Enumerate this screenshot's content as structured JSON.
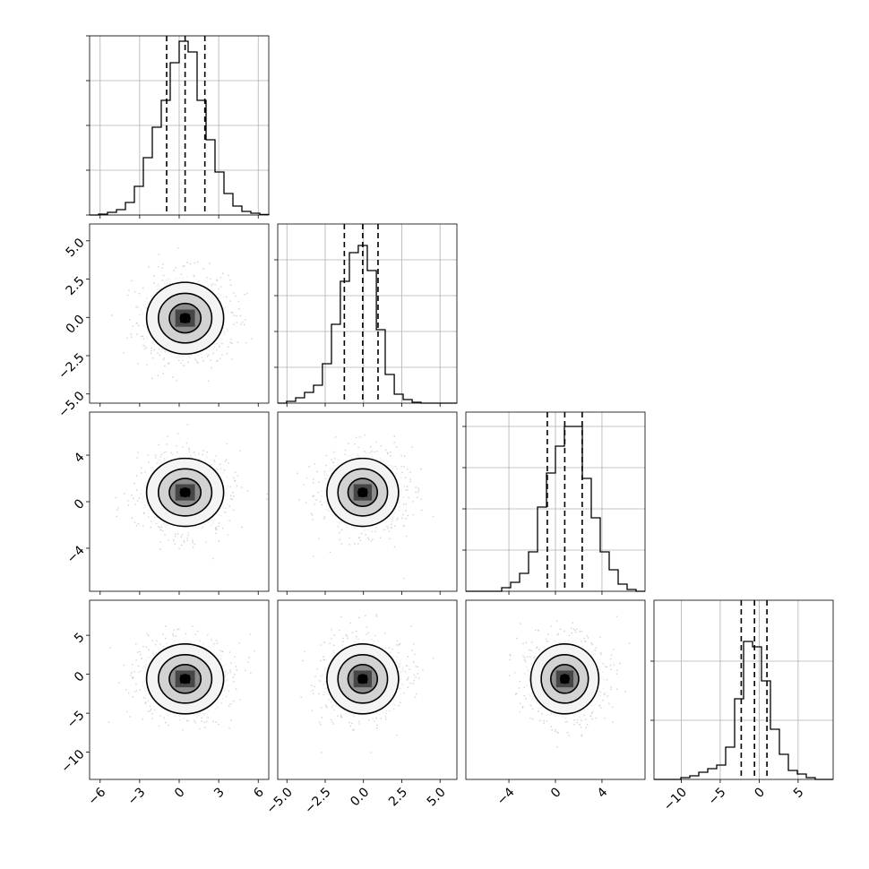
{
  "figure": {
    "background_color": "#ffffff",
    "frame_color": "#000000",
    "grid_color": "#b0b0b0"
  },
  "chart_data": {
    "type": "scatter",
    "variant": "corner-plot",
    "num_params": 4,
    "params": [
      {
        "index": 0,
        "range": [
          -6.8,
          6.8
        ],
        "ticks": [
          -6,
          -3,
          0,
          3,
          6
        ],
        "tick_labels": [
          "−6",
          "−3",
          "0",
          "3",
          "6"
        ],
        "quantiles": [
          -0.95,
          0.45,
          1.95
        ]
      },
      {
        "index": 1,
        "range": [
          -5.6,
          6.1
        ],
        "ticks": [
          -5,
          -2.5,
          0,
          2.5,
          5
        ],
        "tick_labels": [
          "−5.0",
          "−2.5",
          "0.0",
          "2.5",
          "5.0"
        ],
        "quantiles": [
          -1.25,
          -0.05,
          0.95
        ]
      },
      {
        "index": 2,
        "range": [
          -7.7,
          7.7
        ],
        "ticks": [
          -4,
          0,
          4
        ],
        "tick_labels": [
          "−4",
          "0",
          "4"
        ],
        "quantiles": [
          -0.7,
          0.8,
          2.3
        ]
      },
      {
        "index": 3,
        "range": [
          -13.5,
          9.5
        ],
        "ticks": [
          -10,
          -5,
          0,
          5
        ],
        "tick_labels": [
          "−10",
          "−5",
          "0",
          "5"
        ],
        "quantiles": [
          -2.3,
          -0.6,
          1.0
        ]
      }
    ],
    "histograms": [
      {
        "param": 0,
        "ylim": [
          0,
          1.0
        ],
        "grid_values": [
          0.0,
          0.25,
          0.5,
          0.75,
          1.0
        ],
        "edges": [
          -6.8,
          -6.12,
          -5.44,
          -4.76,
          -4.08,
          -3.4,
          -2.72,
          -2.04,
          -1.36,
          -0.68,
          0.0,
          0.68,
          1.36,
          2.04,
          2.72,
          3.4,
          4.08,
          4.76,
          5.44,
          6.12,
          6.8
        ],
        "heights": [
          0.0,
          0.005,
          0.015,
          0.03,
          0.07,
          0.16,
          0.32,
          0.49,
          0.64,
          0.85,
          0.97,
          0.91,
          0.64,
          0.42,
          0.24,
          0.12,
          0.05,
          0.02,
          0.01,
          0.003
        ]
      },
      {
        "param": 1,
        "ylim": [
          0,
          1.0
        ],
        "grid_values": [
          0.2,
          0.4,
          0.6,
          0.8
        ],
        "edges": [
          -5.6,
          -5.02,
          -4.43,
          -3.85,
          -3.26,
          -2.68,
          -2.09,
          -1.51,
          -0.92,
          -0.34,
          0.25,
          0.84,
          1.42,
          2.01,
          2.59,
          3.18,
          3.76,
          4.35,
          4.93,
          5.52,
          6.1
        ],
        "heights": [
          0.0,
          0.01,
          0.03,
          0.06,
          0.1,
          0.22,
          0.44,
          0.68,
          0.84,
          0.88,
          0.74,
          0.41,
          0.16,
          0.05,
          0.02,
          0.005,
          0.0,
          0.0,
          0.0,
          0.0
        ]
      },
      {
        "param": 2,
        "ylim": [
          0,
          1.0
        ],
        "grid_values": [
          0.23,
          0.46,
          0.69,
          0.92
        ],
        "edges": [
          -7.7,
          -6.93,
          -6.16,
          -5.39,
          -4.62,
          -3.85,
          -3.08,
          -2.31,
          -1.54,
          -0.77,
          0.0,
          0.77,
          1.54,
          2.31,
          3.08,
          3.85,
          4.62,
          5.39,
          6.16,
          6.93,
          7.7
        ],
        "heights": [
          0.0,
          0.0,
          0.0,
          0.0,
          0.02,
          0.05,
          0.1,
          0.22,
          0.47,
          0.66,
          0.81,
          0.92,
          0.92,
          0.63,
          0.41,
          0.22,
          0.12,
          0.04,
          0.01,
          0.0
        ]
      },
      {
        "param": 3,
        "ylim": [
          0,
          1.0
        ],
        "grid_values": [
          0.33,
          0.66
        ],
        "edges": [
          -13.5,
          -12.35,
          -11.2,
          -10.05,
          -8.9,
          -7.75,
          -6.6,
          -5.45,
          -4.3,
          -3.15,
          -2.0,
          -0.85,
          0.3,
          1.45,
          2.6,
          3.75,
          4.9,
          6.05,
          7.2,
          8.35,
          9.5
        ],
        "heights": [
          0.0,
          0.0,
          0.0,
          0.01,
          0.02,
          0.04,
          0.06,
          0.08,
          0.18,
          0.45,
          0.77,
          0.74,
          0.55,
          0.28,
          0.14,
          0.05,
          0.03,
          0.01,
          0.0,
          0.0
        ]
      }
    ],
    "pairs": [
      {
        "x_param": 0,
        "y_param": 1,
        "center": [
          0.45,
          -0.05
        ],
        "sigma": [
          1.5,
          1.2
        ],
        "levels_in_sigma": [
          0.8,
          1.35,
          1.95
        ]
      },
      {
        "x_param": 0,
        "y_param": 2,
        "center": [
          0.45,
          0.8
        ],
        "sigma": [
          1.5,
          1.5
        ],
        "levels_in_sigma": [
          0.8,
          1.35,
          1.95
        ]
      },
      {
        "x_param": 1,
        "y_param": 2,
        "center": [
          -0.05,
          0.8
        ],
        "sigma": [
          1.2,
          1.5
        ],
        "levels_in_sigma": [
          0.8,
          1.35,
          1.95
        ]
      },
      {
        "x_param": 0,
        "y_param": 3,
        "center": [
          0.45,
          -0.6
        ],
        "sigma": [
          1.5,
          2.3
        ],
        "levels_in_sigma": [
          0.8,
          1.35,
          1.95
        ]
      },
      {
        "x_param": 1,
        "y_param": 3,
        "center": [
          -0.05,
          -0.6
        ],
        "sigma": [
          1.2,
          2.3
        ],
        "levels_in_sigma": [
          0.8,
          1.35,
          1.95
        ]
      },
      {
        "x_param": 2,
        "y_param": 3,
        "center": [
          0.8,
          -0.6
        ],
        "sigma": [
          1.5,
          2.3
        ],
        "levels_in_sigma": [
          0.8,
          1.35,
          1.95
        ]
      }
    ],
    "grid": true,
    "title": "",
    "legend": null
  }
}
